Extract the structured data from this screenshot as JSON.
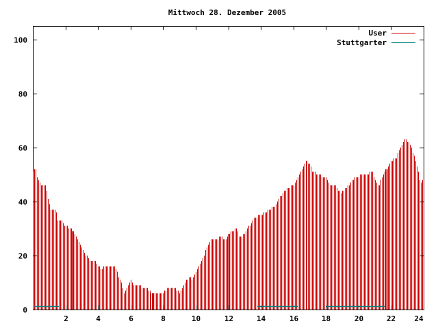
{
  "chart_data": {
    "type": "bar",
    "title": "Mittwoch 28. Dezember 2005",
    "xlabel": "",
    "ylabel": "",
    "xlim": [
      0,
      24
    ],
    "ylim": [
      0,
      105
    ],
    "x_ticks": [
      "2",
      "4",
      "6",
      "8",
      "10",
      "12",
      "14",
      "16",
      "18",
      "20",
      "22",
      "24"
    ],
    "y_ticks": [
      "0",
      "20",
      "40",
      "60",
      "80",
      "100"
    ],
    "grid": false,
    "legend_position": "top-right",
    "colors": {
      "User": "#cc0000",
      "Stuttgarter": "#008080"
    },
    "series": [
      {
        "name": "User",
        "control_points": [
          [
            0.0,
            51
          ],
          [
            0.15,
            52
          ],
          [
            0.3,
            48
          ],
          [
            0.5,
            46
          ],
          [
            0.75,
            46
          ],
          [
            0.95,
            40
          ],
          [
            1.05,
            37
          ],
          [
            1.4,
            37
          ],
          [
            1.5,
            33
          ],
          [
            1.7,
            33
          ],
          [
            1.9,
            31
          ],
          [
            2.3,
            30
          ],
          [
            2.6,
            28
          ],
          [
            2.8,
            26
          ],
          [
            3.0,
            23
          ],
          [
            3.2,
            21
          ],
          [
            3.5,
            18
          ],
          [
            3.8,
            18
          ],
          [
            4.0,
            16
          ],
          [
            4.2,
            15
          ],
          [
            4.4,
            16
          ],
          [
            5.0,
            16
          ],
          [
            5.2,
            13
          ],
          [
            5.4,
            10
          ],
          [
            5.5,
            8
          ],
          [
            5.6,
            6
          ],
          [
            5.8,
            9
          ],
          [
            6.0,
            11
          ],
          [
            6.2,
            9
          ],
          [
            7.0,
            8
          ],
          [
            7.3,
            6
          ],
          [
            8.0,
            6
          ],
          [
            8.3,
            8
          ],
          [
            8.7,
            8
          ],
          [
            9.0,
            6
          ],
          [
            9.3,
            10
          ],
          [
            9.6,
            12
          ],
          [
            9.8,
            11
          ],
          [
            10.0,
            14
          ],
          [
            10.3,
            17
          ],
          [
            10.6,
            22
          ],
          [
            10.9,
            26
          ],
          [
            11.3,
            26
          ],
          [
            11.5,
            27
          ],
          [
            11.8,
            26
          ],
          [
            12.0,
            28
          ],
          [
            12.3,
            29
          ],
          [
            12.5,
            30
          ],
          [
            12.7,
            27
          ],
          [
            13.0,
            28
          ],
          [
            13.3,
            31
          ],
          [
            13.6,
            34
          ],
          [
            14.0,
            35
          ],
          [
            14.5,
            37
          ],
          [
            14.8,
            38
          ],
          [
            15.2,
            42
          ],
          [
            15.6,
            45
          ],
          [
            16.0,
            46
          ],
          [
            16.2,
            48
          ],
          [
            16.5,
            52
          ],
          [
            16.8,
            55
          ],
          [
            17.0,
            54
          ],
          [
            17.2,
            51
          ],
          [
            17.5,
            50
          ],
          [
            18.0,
            49
          ],
          [
            18.3,
            46
          ],
          [
            18.6,
            46
          ],
          [
            18.9,
            43
          ],
          [
            19.2,
            45
          ],
          [
            19.5,
            47
          ],
          [
            19.8,
            49
          ],
          [
            20.2,
            50
          ],
          [
            20.5,
            50
          ],
          [
            20.8,
            51
          ],
          [
            21.0,
            48
          ],
          [
            21.2,
            45
          ],
          [
            21.4,
            49
          ],
          [
            21.6,
            51
          ],
          [
            21.8,
            53
          ],
          [
            22.0,
            55
          ],
          [
            22.3,
            56
          ],
          [
            22.5,
            59
          ],
          [
            22.7,
            62
          ],
          [
            22.9,
            63
          ],
          [
            23.2,
            61
          ],
          [
            23.5,
            55
          ],
          [
            23.8,
            47
          ],
          [
            24.0,
            48
          ]
        ]
      },
      {
        "name": "Stuttgarter",
        "segments": [
          [
            0.1,
            1.6,
            1
          ],
          [
            13.8,
            16.3,
            1
          ],
          [
            18.0,
            21.6,
            1
          ]
        ]
      }
    ],
    "highlight_x": [
      2.4,
      7.35,
      12.0,
      21.75
    ]
  }
}
